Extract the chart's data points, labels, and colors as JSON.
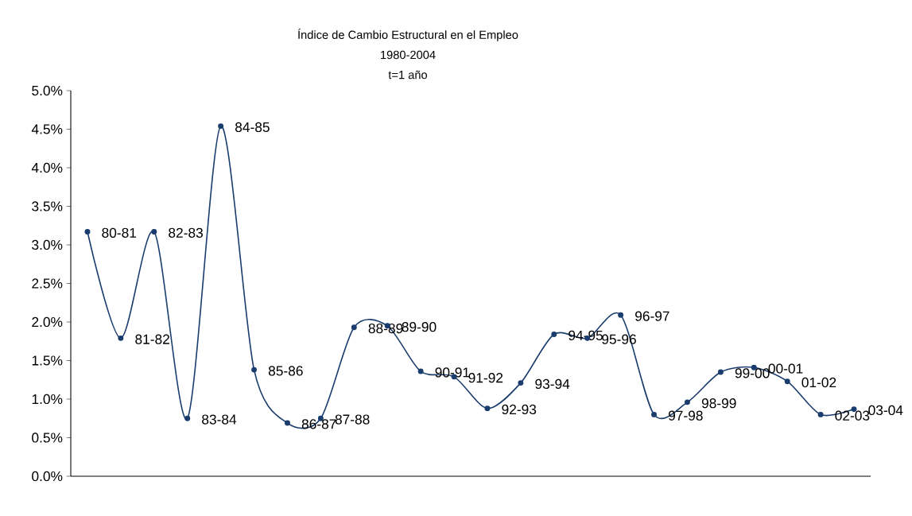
{
  "chart_data": {
    "type": "line",
    "title": "Índice de Cambio Estructural en el Empleo",
    "subtitle": "1980-2004",
    "annotations": [
      "t=1 año"
    ],
    "categories": [
      null,
      null,
      null,
      null,
      null,
      null,
      null,
      null,
      null,
      null,
      null,
      null,
      null,
      null,
      null,
      null,
      null,
      null,
      null,
      null,
      null,
      null,
      null,
      null
    ],
    "series": [
      {
        "color": "#1a3d6e",
        "values": [
          3.17,
          1.79,
          3.17,
          0.75,
          4.54,
          1.38,
          0.69,
          0.75,
          1.93,
          1.95,
          1.36,
          1.29,
          0.88,
          1.21,
          1.84,
          1.79,
          2.09,
          0.8,
          0.96,
          1.35,
          1.41,
          1.23,
          0.8,
          0.87
        ],
        "value_labels": [
          "80-81",
          "81-82",
          "82-83",
          "83-84",
          "84-85",
          "85-86",
          "86-87",
          "87-88",
          "88-89",
          "89-90",
          "90-91",
          "91-92",
          "92-93",
          "93-94",
          "94-95",
          "95-96",
          "96-97",
          "97-98",
          "98-99",
          "99-00",
          "00-01",
          "01-02",
          "02-03",
          "03-04"
        ]
      }
    ],
    "ylim": [
      0,
      5
    ],
    "yticks": [
      {
        "value": 0,
        "label": "0.0%"
      },
      {
        "value": 0.5,
        "label": "0.5%"
      },
      {
        "value": 1,
        "label": "1.0%"
      },
      {
        "value": 1.5,
        "label": "1.5%"
      },
      {
        "value": 2,
        "label": "2.0%"
      },
      {
        "value": 2.5,
        "label": "2.5%"
      },
      {
        "value": 3,
        "label": "3.0%"
      },
      {
        "value": 3.5,
        "label": "3.5%"
      },
      {
        "value": 4,
        "label": "4.0%"
      },
      {
        "value": 4.5,
        "label": "4.5%"
      },
      {
        "value": 5,
        "label": "5.0%"
      }
    ],
    "marker": "circle"
  }
}
